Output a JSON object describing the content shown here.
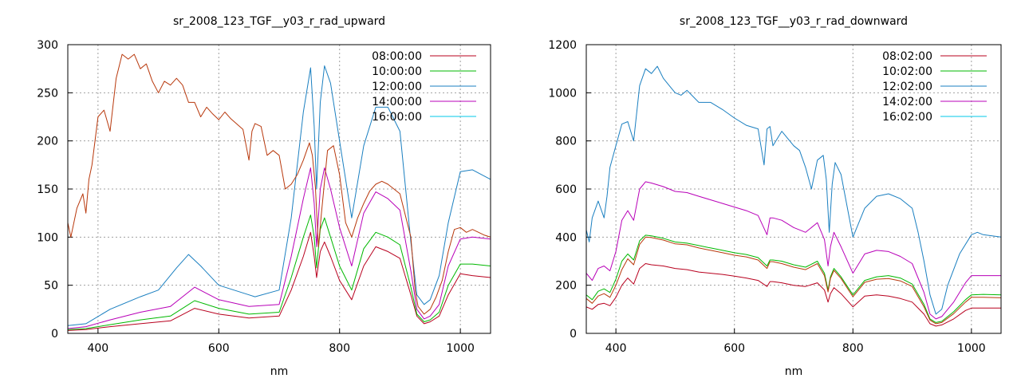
{
  "chart_data": [
    {
      "type": "line",
      "title": "sr_2008_123_TGF__y03_r_rad_upward",
      "xlabel": "nm",
      "ylabel": "",
      "xlim": [
        350,
        1050
      ],
      "ylim": [
        0,
        300
      ],
      "xticks": [
        "400",
        "600",
        "800",
        "1000"
      ],
      "yticks": [
        "0",
        "50",
        "100",
        "150",
        "200",
        "250",
        "300"
      ],
      "grid": true,
      "legend_position": "top-right",
      "series": [
        {
          "name": "08:00:00",
          "color": "#b8001e",
          "x": [
            350,
            380,
            420,
            470,
            520,
            560,
            600,
            650,
            700,
            720,
            740,
            752,
            758,
            762,
            768,
            775,
            785,
            800,
            820,
            840,
            860,
            880,
            900,
            918,
            928,
            940,
            950,
            965,
            980,
            1000,
            1020,
            1050
          ],
          "y": [
            3,
            4,
            7,
            10,
            13,
            26,
            20,
            16,
            18,
            45,
            80,
            105,
            80,
            58,
            85,
            95,
            80,
            55,
            35,
            70,
            90,
            85,
            78,
            40,
            18,
            10,
            12,
            18,
            40,
            62,
            60,
            58
          ]
        },
        {
          "name": "10:00:00",
          "color": "#00b800",
          "x": [
            350,
            380,
            420,
            470,
            520,
            560,
            600,
            650,
            700,
            720,
            740,
            752,
            758,
            762,
            768,
            775,
            785,
            800,
            820,
            840,
            860,
            880,
            900,
            918,
            928,
            940,
            950,
            965,
            980,
            1000,
            1020,
            1050
          ],
          "y": [
            4,
            5,
            9,
            14,
            18,
            34,
            26,
            20,
            22,
            58,
            100,
            123,
            100,
            68,
            108,
            120,
            100,
            70,
            45,
            88,
            105,
            100,
            92,
            48,
            20,
            12,
            14,
            22,
            50,
            72,
            72,
            70
          ]
        },
        {
          "name": "12:00:00",
          "color": "#1a7fc0",
          "x": [
            350,
            380,
            420,
            470,
            500,
            530,
            550,
            570,
            600,
            650,
            660,
            700,
            720,
            740,
            752,
            758,
            762,
            768,
            775,
            785,
            800,
            820,
            840,
            860,
            880,
            900,
            918,
            928,
            940,
            950,
            965,
            980,
            1000,
            1020,
            1050
          ],
          "y": [
            8,
            10,
            25,
            38,
            45,
            68,
            82,
            70,
            50,
            40,
            38,
            45,
            120,
            230,
            276,
            215,
            150,
            240,
            278,
            260,
            200,
            120,
            195,
            235,
            235,
            210,
            95,
            40,
            30,
            35,
            60,
            115,
            168,
            170,
            160
          ]
        },
        {
          "name": "14:00:00",
          "color": "#b800b8",
          "x": [
            350,
            380,
            420,
            470,
            520,
            560,
            600,
            650,
            700,
            720,
            740,
            752,
            758,
            762,
            768,
            775,
            785,
            800,
            820,
            840,
            860,
            880,
            900,
            918,
            928,
            940,
            950,
            965,
            980,
            1000,
            1020,
            1050
          ],
          "y": [
            5,
            7,
            14,
            22,
            28,
            48,
            35,
            28,
            30,
            80,
            140,
            172,
            135,
            90,
            150,
            172,
            150,
            110,
            70,
            125,
            147,
            140,
            128,
            65,
            25,
            15,
            18,
            30,
            70,
            98,
            100,
            98
          ]
        },
        {
          "name": "16:00:00",
          "color": "#00c8e8",
          "x": [],
          "y": []
        }
      ],
      "overlay_series_color": "#b8380c",
      "overlay_series": {
        "x": [
          350,
          355,
          365,
          375,
          380,
          385,
          390,
          400,
          410,
          420,
          430,
          440,
          450,
          460,
          470,
          480,
          490,
          500,
          510,
          520,
          530,
          540,
          550,
          560,
          570,
          580,
          590,
          600,
          610,
          620,
          640,
          650,
          655,
          660,
          670,
          680,
          690,
          700,
          710,
          720,
          730,
          740,
          750,
          755,
          760,
          765,
          770,
          780,
          790,
          800,
          810,
          820,
          830,
          840,
          850,
          860,
          870,
          880,
          890,
          900,
          910,
          918,
          925,
          930,
          940,
          950,
          960,
          970,
          980,
          990,
          1000,
          1010,
          1020,
          1030,
          1040,
          1050
        ],
        "y": [
          115,
          100,
          130,
          145,
          125,
          160,
          175,
          225,
          232,
          210,
          265,
          290,
          285,
          290,
          275,
          280,
          262,
          250,
          262,
          258,
          265,
          258,
          240,
          240,
          225,
          235,
          228,
          222,
          230,
          223,
          212,
          180,
          210,
          218,
          215,
          185,
          190,
          185,
          150,
          155,
          165,
          180,
          198,
          185,
          152,
          90,
          125,
          190,
          195,
          165,
          115,
          100,
          120,
          135,
          148,
          155,
          158,
          155,
          150,
          145,
          120,
          100,
          45,
          28,
          20,
          25,
          38,
          55,
          85,
          108,
          110,
          105,
          108,
          105,
          102,
          100
        ]
      }
    },
    {
      "type": "line",
      "title": "sr_2008_123_TGF__y03_r_rad_downward",
      "xlabel": "nm",
      "ylabel": "",
      "xlim": [
        350,
        1050
      ],
      "ylim": [
        0,
        1200
      ],
      "xticks": [
        "400",
        "600",
        "800",
        "1000"
      ],
      "yticks": [
        "0",
        "200",
        "400",
        "600",
        "800",
        "1000",
        "1200"
      ],
      "grid": true,
      "legend_position": "top-right",
      "series": [
        {
          "name": "08:02:00",
          "color": "#b8001e",
          "x": [
            350,
            360,
            370,
            380,
            390,
            400,
            410,
            420,
            430,
            440,
            450,
            460,
            480,
            500,
            520,
            540,
            560,
            580,
            600,
            620,
            640,
            655,
            660,
            665,
            680,
            700,
            720,
            740,
            752,
            758,
            762,
            768,
            780,
            800,
            820,
            840,
            860,
            880,
            900,
            920,
            930,
            940,
            950,
            970,
            990,
            1000,
            1020,
            1050
          ],
          "y": [
            110,
            100,
            120,
            125,
            115,
            150,
            200,
            230,
            205,
            270,
            290,
            285,
            280,
            270,
            265,
            255,
            250,
            245,
            238,
            230,
            220,
            195,
            215,
            215,
            210,
            200,
            195,
            210,
            180,
            130,
            165,
            190,
            165,
            110,
            155,
            160,
            155,
            145,
            130,
            80,
            40,
            30,
            35,
            60,
            95,
            105,
            105,
            105
          ]
        },
        {
          "name": "10:02:00",
          "color": "#00b800",
          "x": [
            350,
            360,
            370,
            380,
            390,
            400,
            410,
            420,
            430,
            440,
            450,
            460,
            480,
            500,
            520,
            540,
            560,
            580,
            600,
            620,
            640,
            655,
            660,
            665,
            680,
            700,
            720,
            740,
            752,
            758,
            762,
            768,
            780,
            800,
            820,
            840,
            860,
            880,
            900,
            920,
            930,
            940,
            950,
            970,
            990,
            1000,
            1020,
            1050
          ],
          "y": [
            160,
            140,
            175,
            185,
            170,
            225,
            300,
            330,
            305,
            385,
            408,
            405,
            395,
            380,
            375,
            365,
            355,
            345,
            335,
            328,
            315,
            280,
            305,
            305,
            300,
            285,
            275,
            300,
            250,
            180,
            235,
            270,
            235,
            160,
            220,
            235,
            240,
            230,
            205,
            120,
            60,
            45,
            50,
            90,
            140,
            160,
            162,
            160
          ]
        },
        {
          "name": "12:02:00",
          "color": "#1a7fc0",
          "x": [
            350,
            355,
            360,
            370,
            380,
            385,
            390,
            400,
            410,
            420,
            430,
            440,
            450,
            460,
            470,
            480,
            490,
            500,
            510,
            520,
            530,
            540,
            560,
            580,
            600,
            620,
            640,
            650,
            655,
            660,
            665,
            680,
            700,
            710,
            720,
            730,
            740,
            750,
            755,
            760,
            765,
            770,
            780,
            800,
            820,
            840,
            860,
            880,
            900,
            910,
            920,
            930,
            940,
            950,
            960,
            980,
            1000,
            1010,
            1020,
            1050
          ],
          "y": [
            430,
            380,
            480,
            550,
            480,
            570,
            690,
            780,
            870,
            880,
            800,
            1030,
            1100,
            1080,
            1110,
            1060,
            1030,
            1000,
            990,
            1010,
            985,
            960,
            960,
            930,
            895,
            865,
            850,
            700,
            850,
            860,
            780,
            840,
            780,
            760,
            690,
            600,
            720,
            740,
            640,
            420,
            620,
            710,
            660,
            400,
            520,
            570,
            580,
            560,
            520,
            420,
            300,
            160,
            80,
            100,
            200,
            330,
            410,
            420,
            410,
            400
          ]
        },
        {
          "name": "14:02:00",
          "color": "#b800b8",
          "x": [
            350,
            360,
            370,
            380,
            390,
            400,
            410,
            420,
            430,
            440,
            450,
            460,
            480,
            500,
            520,
            540,
            560,
            580,
            600,
            620,
            640,
            655,
            660,
            665,
            680,
            700,
            720,
            740,
            752,
            758,
            762,
            768,
            780,
            800,
            820,
            840,
            860,
            880,
            900,
            920,
            930,
            940,
            950,
            970,
            990,
            1000,
            1020,
            1050
          ],
          "y": [
            250,
            220,
            270,
            280,
            260,
            340,
            470,
            510,
            470,
            600,
            630,
            625,
            610,
            590,
            585,
            570,
            555,
            540,
            525,
            510,
            490,
            410,
            480,
            480,
            470,
            440,
            420,
            460,
            390,
            280,
            360,
            420,
            360,
            250,
            330,
            345,
            340,
            320,
            290,
            170,
            80,
            60,
            70,
            130,
            210,
            240,
            240,
            240
          ]
        },
        {
          "name": "16:02:00",
          "color": "#00c8e8",
          "x": [],
          "y": []
        }
      ],
      "overlay_series_color": "#b8380c",
      "overlay_series": {
        "x": [
          350,
          360,
          370,
          380,
          390,
          400,
          410,
          420,
          430,
          440,
          450,
          460,
          480,
          500,
          520,
          540,
          560,
          580,
          600,
          620,
          640,
          655,
          660,
          665,
          680,
          700,
          720,
          740,
          752,
          758,
          762,
          768,
          780,
          800,
          820,
          840,
          860,
          880,
          900,
          920,
          930,
          940,
          950,
          970,
          990,
          1000,
          1020,
          1050
        ],
        "y": [
          145,
          125,
          155,
          165,
          150,
          200,
          265,
          310,
          285,
          370,
          400,
          398,
          388,
          372,
          368,
          355,
          345,
          335,
          325,
          318,
          305,
          270,
          298,
          298,
          290,
          275,
          265,
          290,
          240,
          172,
          228,
          262,
          228,
          152,
          212,
          225,
          228,
          218,
          195,
          110,
          55,
          40,
          45,
          82,
          130,
          150,
          150,
          148
        ]
      }
    }
  ]
}
